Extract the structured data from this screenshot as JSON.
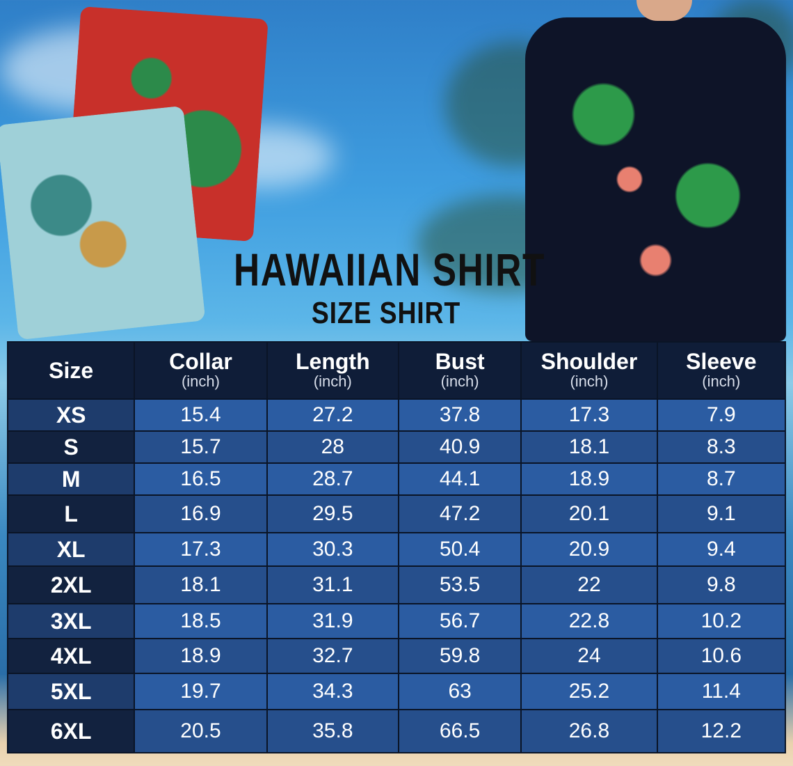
{
  "title": "HAWAIIAN SHIRT",
  "subtitle": "SIZE SHIRT",
  "colors": {
    "header_bg": "#0f1d38",
    "row_light": "#2b5ca2",
    "row_dark": "#264f8c",
    "text": "#ffffff"
  },
  "table": {
    "headers": [
      {
        "label": "Size",
        "unit": ""
      },
      {
        "label": "Collar",
        "unit": "(inch)"
      },
      {
        "label": "Length",
        "unit": "(inch)"
      },
      {
        "label": "Bust",
        "unit": "(inch)"
      },
      {
        "label": "Shoulder",
        "unit": "(inch)"
      },
      {
        "label": "Sleeve",
        "unit": "(inch)"
      }
    ],
    "rows": [
      [
        "XS",
        "15.4",
        "27.2",
        "37.8",
        "17.3",
        "7.9"
      ],
      [
        "S",
        "15.7",
        "28",
        "40.9",
        "18.1",
        "8.3"
      ],
      [
        "M",
        "16.5",
        "28.7",
        "44.1",
        "18.9",
        "8.7"
      ],
      [
        "L",
        "16.9",
        "29.5",
        "47.2",
        "20.1",
        "9.1"
      ],
      [
        "XL",
        "17.3",
        "30.3",
        "50.4",
        "20.9",
        "9.4"
      ],
      [
        "2XL",
        "18.1",
        "31.1",
        "53.5",
        "22",
        "9.8"
      ],
      [
        "3XL",
        "18.5",
        "31.9",
        "56.7",
        "22.8",
        "10.2"
      ],
      [
        "4XL",
        "18.9",
        "32.7",
        "59.8",
        "24",
        "10.6"
      ],
      [
        "5XL",
        "19.7",
        "34.3",
        "63",
        "25.2",
        "11.4"
      ],
      [
        "6XL",
        "20.5",
        "35.8",
        "66.5",
        "26.8",
        "12.2"
      ]
    ]
  }
}
